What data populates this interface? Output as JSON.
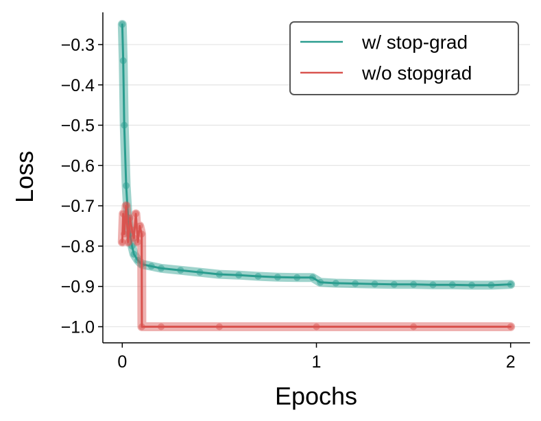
{
  "chart_data": {
    "type": "line",
    "xlabel": "Epochs",
    "ylabel": "Loss",
    "xlim": [
      -0.1,
      2.1
    ],
    "ylim": [
      -1.04,
      -0.22
    ],
    "xticks": [
      0,
      1,
      2
    ],
    "xtick_labels": [
      "0",
      "1",
      "2"
    ],
    "yticks": [
      -0.3,
      -0.4,
      -0.5,
      -0.6,
      -0.7,
      -0.8,
      -0.9,
      -1.0
    ],
    "ytick_labels": [
      "−0.3",
      "−0.4",
      "−0.5",
      "−0.6",
      "−0.7",
      "−0.8",
      "−0.9",
      "−1.0"
    ],
    "grid": "horizontal",
    "legend_position": "top-right",
    "series": [
      {
        "name": "w/ stop-grad",
        "color": "#2a9d8f",
        "x": [
          0,
          0.005,
          0.01,
          0.02,
          0.03,
          0.04,
          0.05,
          0.06,
          0.08,
          0.1,
          0.15,
          0.2,
          0.3,
          0.4,
          0.5,
          0.6,
          0.7,
          0.8,
          0.9,
          0.98,
          1.02,
          1.1,
          1.2,
          1.3,
          1.4,
          1.5,
          1.6,
          1.7,
          1.8,
          1.9,
          2.0
        ],
        "y": [
          -0.25,
          -0.34,
          -0.5,
          -0.65,
          -0.73,
          -0.77,
          -0.8,
          -0.82,
          -0.835,
          -0.845,
          -0.85,
          -0.855,
          -0.86,
          -0.865,
          -0.87,
          -0.872,
          -0.875,
          -0.877,
          -0.878,
          -0.878,
          -0.89,
          -0.892,
          -0.893,
          -0.894,
          -0.895,
          -0.895,
          -0.896,
          -0.896,
          -0.897,
          -0.897,
          -0.895
        ]
      },
      {
        "name": "w/o stopgrad",
        "color": "#d9534f",
        "x": [
          0,
          0.005,
          0.01,
          0.02,
          0.03,
          0.04,
          0.05,
          0.06,
          0.07,
          0.08,
          0.09,
          0.1,
          0.101,
          0.2,
          0.5,
          1.0,
          1.5,
          2.0
        ],
        "y": [
          -0.79,
          -0.72,
          -0.77,
          -0.7,
          -0.79,
          -0.73,
          -0.76,
          -0.78,
          -0.72,
          -0.79,
          -0.75,
          -0.77,
          -1.0,
          -1.0,
          -1.0,
          -1.0,
          -1.0,
          -1.0
        ]
      }
    ]
  }
}
